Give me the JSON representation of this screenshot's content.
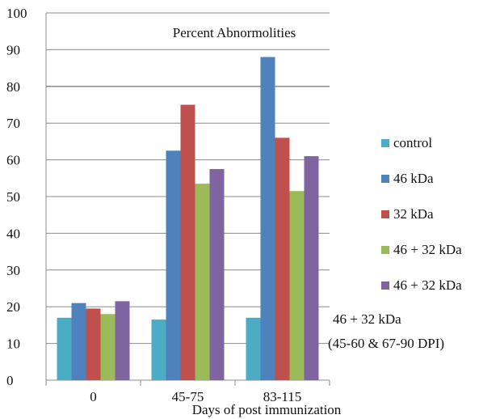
{
  "chart_data": {
    "type": "bar",
    "title": "Percent Abnormolities",
    "xlabel": "Days of post immunization",
    "ylabel": "",
    "ylim": [
      0,
      100
    ],
    "yticks": [
      0,
      10,
      20,
      30,
      40,
      50,
      60,
      70,
      80,
      90,
      100
    ],
    "grid": "horizontal",
    "legend_position": "right",
    "categories": [
      "0",
      "45-75",
      "83-115"
    ],
    "series": [
      {
        "name": "control",
        "color": "#4bacc6",
        "values": [
          17,
          16.5,
          17
        ]
      },
      {
        "name": "46 kDa",
        "color": "#4f81bd",
        "values": [
          21,
          62.5,
          88
        ]
      },
      {
        "name": "32 kDa",
        "color": "#c0504d",
        "values": [
          19.5,
          75,
          66
        ]
      },
      {
        "name": "46 + 32 kDa",
        "color": "#9bbb59",
        "values": [
          18,
          53.5,
          51.5
        ]
      },
      {
        "name": "46 + 32 kDa",
        "color": "#8064a2",
        "values": [
          21.5,
          57.5,
          61
        ]
      }
    ],
    "annotation": [
      "46 + 32 kDa",
      "(45-60 & 67-90 DPI)"
    ]
  }
}
